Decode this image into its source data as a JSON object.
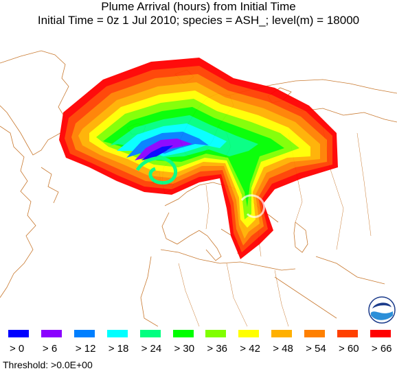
{
  "title_line1": "Plume Arrival (hours) from Initial Time",
  "title_line2": "Initial Time =  0z  1 Jul 2010;  species = ASH_;  level(m) = 18000",
  "legend": [
    {
      "label": "> 0",
      "color": "#0000ff"
    },
    {
      "label": "> 6",
      "color": "#8a00ff"
    },
    {
      "label": "> 12",
      "color": "#007fff"
    },
    {
      "label": "> 18",
      "color": "#00ffff"
    },
    {
      "label": "> 24",
      "color": "#00ff80"
    },
    {
      "label": "> 30",
      "color": "#00ff00"
    },
    {
      "label": "> 36",
      "color": "#80ff00"
    },
    {
      "label": "> 42",
      "color": "#ffff00"
    },
    {
      "label": "> 48",
      "color": "#ffb000"
    },
    {
      "label": "> 54",
      "color": "#ff8000"
    },
    {
      "label": "> 60",
      "color": "#ff4000"
    },
    {
      "label": "> 66",
      "color": "#ff0000"
    }
  ],
  "threshold": "Threshold: >0.0E+00",
  "logo": {
    "icon": "noaa-logo-icon",
    "text": "noaa",
    "color": "#1a3a8a"
  }
}
